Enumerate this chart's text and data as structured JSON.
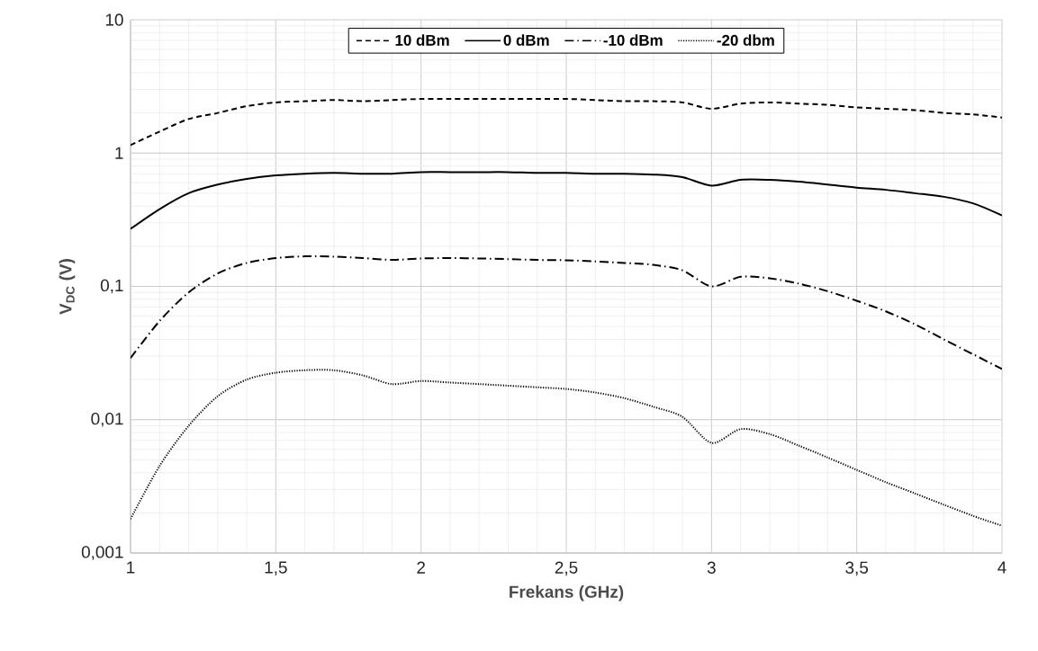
{
  "chart_data": {
    "type": "line",
    "xlabel": "Frekans (GHz)",
    "ylabel": "V$_{DC}$ (V)",
    "log": "y",
    "grid": true,
    "legend": "top",
    "marker": "none",
    "x": [
      1,
      1.1,
      1.2,
      1.3,
      1.4,
      1.5,
      1.6,
      1.7,
      1.8,
      1.9,
      2,
      2.1,
      2.2,
      2.3,
      2.4,
      2.5,
      2.6,
      2.7,
      2.8,
      2.9,
      3,
      3.1,
      3.2,
      3.3,
      3.4,
      3.5,
      3.6,
      3.7,
      3.8,
      3.9,
      4
    ],
    "xlim": [
      1,
      4
    ],
    "xticks": [
      1,
      {
        "value": 1.5,
        "label": "1,5"
      },
      2,
      {
        "value": 2.5,
        "label": "2,5"
      },
      3,
      {
        "value": 3.5,
        "label": "3,5"
      },
      4
    ],
    "ylim": [
      0.001,
      10
    ],
    "yticks": [
      {
        "value": 0.001,
        "label": "0,001"
      },
      {
        "value": 0.01,
        "label": "0,01"
      },
      {
        "value": 0.1,
        "label": "0,1"
      },
      1,
      10
    ],
    "series": [
      {
        "name": "10 dBm",
        "color": "#000000",
        "line_style": "dashed",
        "values": [
          1.15,
          1.45,
          1.8,
          2.0,
          2.25,
          2.4,
          2.45,
          2.5,
          2.45,
          2.5,
          2.55,
          2.55,
          2.55,
          2.55,
          2.55,
          2.55,
          2.5,
          2.45,
          2.45,
          2.4,
          2.15,
          2.35,
          2.4,
          2.35,
          2.3,
          2.2,
          2.15,
          2.1,
          2.0,
          1.95,
          1.85
        ]
      },
      {
        "name": "0 dBm",
        "color": "#000000",
        "line_style": "solid",
        "values": [
          0.27,
          0.38,
          0.5,
          0.58,
          0.64,
          0.68,
          0.7,
          0.71,
          0.7,
          0.7,
          0.72,
          0.72,
          0.72,
          0.72,
          0.71,
          0.71,
          0.7,
          0.7,
          0.69,
          0.66,
          0.57,
          0.63,
          0.63,
          0.61,
          0.58,
          0.55,
          0.53,
          0.5,
          0.47,
          0.42,
          0.34
        ]
      },
      {
        "name": "-10 dBm",
        "color": "#000000",
        "line_style": "dashdot",
        "values": [
          0.029,
          0.055,
          0.09,
          0.125,
          0.15,
          0.163,
          0.168,
          0.167,
          0.163,
          0.158,
          0.162,
          0.163,
          0.162,
          0.16,
          0.158,
          0.157,
          0.154,
          0.15,
          0.145,
          0.132,
          0.1,
          0.118,
          0.115,
          0.105,
          0.092,
          0.078,
          0.065,
          0.052,
          0.04,
          0.031,
          0.024
        ]
      },
      {
        "name": "-20 dbm",
        "color": "#000000",
        "line_style": "dotted",
        "values": [
          0.0018,
          0.0045,
          0.009,
          0.015,
          0.02,
          0.0225,
          0.0235,
          0.0235,
          0.0215,
          0.0185,
          0.0195,
          0.019,
          0.0185,
          0.018,
          0.0175,
          0.017,
          0.016,
          0.0145,
          0.0125,
          0.0105,
          0.0067,
          0.0085,
          0.0078,
          0.0064,
          0.0052,
          0.0042,
          0.0034,
          0.0028,
          0.0023,
          0.0019,
          0.0016
        ]
      }
    ]
  }
}
